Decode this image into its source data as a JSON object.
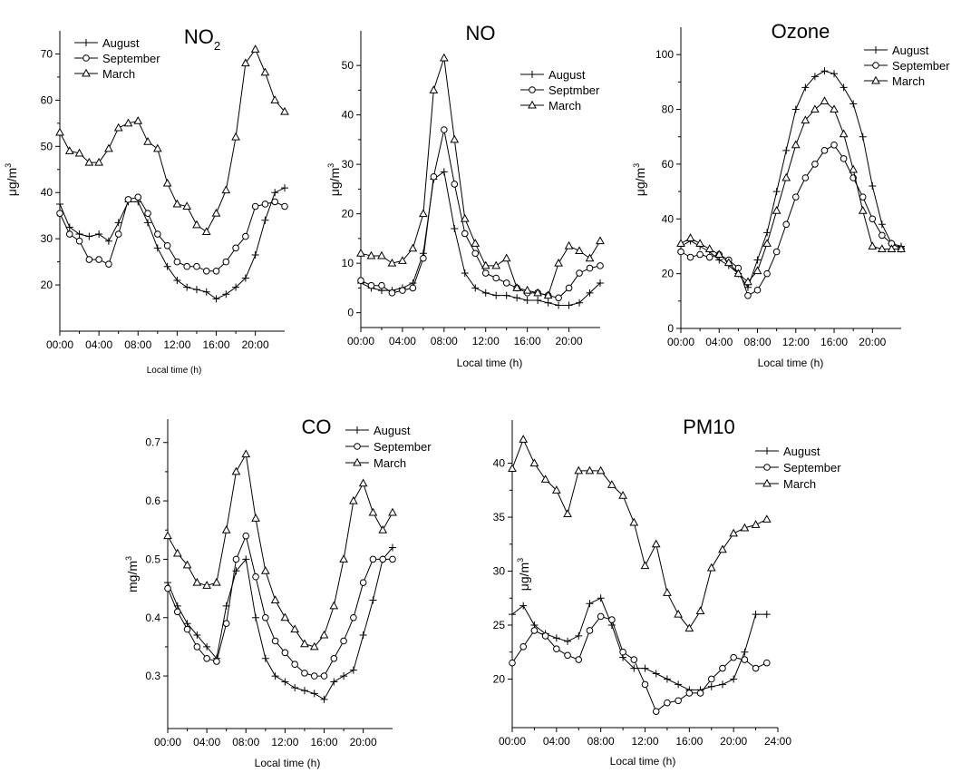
{
  "chart_data": [
    {
      "type": "line",
      "title": "NO",
      "title_sub": "2",
      "xlabel": "Local time (h)",
      "ylabel": "μg/m",
      "ylabel_sup": "3",
      "xlim": [
        0,
        23
      ],
      "ylim": [
        10,
        75
      ],
      "x_ticks": [
        0,
        4,
        8,
        12,
        16,
        20
      ],
      "x_tick_labels": [
        "00:00",
        "04:00",
        "08:00",
        "12:00",
        "16:00",
        "20:00"
      ],
      "y_ticks": [
        20,
        30,
        40,
        50,
        60,
        70
      ],
      "y_tick_labels": [
        "20",
        "30",
        "40",
        "50",
        "60",
        "70"
      ],
      "legend_position": "top-left",
      "series": [
        {
          "name": "August",
          "marker": "plus",
          "x": [
            0,
            1,
            2,
            3,
            4,
            5,
            6,
            7,
            8,
            9,
            10,
            11,
            12,
            13,
            14,
            15,
            16,
            17,
            18,
            19,
            20,
            21,
            22,
            23
          ],
          "values": [
            37.5,
            32.5,
            31,
            30.5,
            31,
            29.5,
            33.5,
            38,
            38,
            33.5,
            28,
            24,
            21,
            19.5,
            19,
            18.5,
            17,
            18,
            19.5,
            21.5,
            26.5,
            34,
            40,
            41
          ]
        },
        {
          "name": "September",
          "marker": "circle",
          "x": [
            0,
            1,
            2,
            3,
            4,
            5,
            6,
            7,
            8,
            9,
            10,
            11,
            12,
            13,
            14,
            15,
            16,
            17,
            18,
            19,
            20,
            21,
            22,
            23
          ],
          "values": [
            35.5,
            31,
            29.5,
            25.5,
            25.5,
            24.5,
            31,
            38.5,
            39,
            35.5,
            31,
            28.5,
            25,
            24,
            24,
            23,
            23,
            25,
            28,
            30.5,
            37,
            37.5,
            38,
            37
          ]
        },
        {
          "name": "March",
          "marker": "triangle",
          "x": [
            0,
            1,
            2,
            3,
            4,
            5,
            6,
            7,
            8,
            9,
            10,
            11,
            12,
            13,
            14,
            15,
            16,
            17,
            18,
            19,
            20,
            21,
            22,
            23
          ],
          "values": [
            53,
            49,
            48.5,
            46.5,
            46.5,
            49.5,
            54,
            55,
            55.5,
            51,
            49.5,
            42,
            37.5,
            37,
            33,
            31.5,
            35.5,
            40.5,
            52,
            68,
            71,
            66,
            60,
            57.5
          ]
        }
      ]
    },
    {
      "type": "line",
      "title": "NO",
      "xlabel": "Local time (h)",
      "ylabel": "μg/m",
      "ylabel_sup": "3",
      "xlim": [
        0,
        23
      ],
      "ylim": [
        -3,
        57
      ],
      "x_ticks": [
        0,
        4,
        8,
        12,
        16,
        20
      ],
      "x_tick_labels": [
        "00:00",
        "04:00",
        "08:00",
        "12:00",
        "16:00",
        "20:00"
      ],
      "y_ticks": [
        0,
        10,
        20,
        30,
        40,
        50
      ],
      "y_tick_labels": [
        "0",
        "10",
        "20",
        "30",
        "40",
        "50"
      ],
      "legend_position": "top-right",
      "series": [
        {
          "name": "August",
          "marker": "plus",
          "x": [
            0,
            1,
            2,
            3,
            4,
            5,
            6,
            7,
            8,
            9,
            10,
            11,
            12,
            13,
            14,
            15,
            16,
            17,
            18,
            19,
            20,
            21,
            22,
            23
          ],
          "values": [
            6,
            5,
            4.5,
            4.5,
            5,
            6,
            12,
            27,
            28.5,
            17,
            8,
            5,
            4,
            3.5,
            3.5,
            3,
            2.5,
            2.5,
            2,
            1.5,
            1.5,
            2,
            4,
            6
          ]
        },
        {
          "name": "Septmber",
          "marker": "circle",
          "x": [
            0,
            1,
            2,
            3,
            4,
            5,
            6,
            7,
            8,
            9,
            10,
            11,
            12,
            13,
            14,
            15,
            16,
            17,
            18,
            19,
            20,
            21,
            22,
            23
          ],
          "values": [
            6.5,
            5.5,
            5.5,
            4,
            4.5,
            5,
            11,
            27.5,
            37,
            26,
            16,
            12,
            8,
            7,
            6,
            5,
            4,
            4,
            3.5,
            3,
            5,
            8,
            9,
            9.5
          ]
        },
        {
          "name": "March",
          "marker": "triangle",
          "x": [
            0,
            1,
            2,
            3,
            4,
            5,
            6,
            7,
            8,
            9,
            10,
            11,
            12,
            13,
            14,
            15,
            16,
            17,
            18,
            19,
            20,
            21,
            22,
            23
          ],
          "values": [
            12,
            11.5,
            11.5,
            10,
            10.5,
            13,
            20,
            45,
            51.5,
            35,
            19,
            14,
            9.5,
            9.5,
            11,
            5,
            4.5,
            4,
            3.5,
            10,
            13.5,
            12.5,
            11,
            14.5
          ]
        }
      ]
    },
    {
      "type": "line",
      "title": "Ozone",
      "xlabel": "Local time (h)",
      "ylabel": "μg/m",
      "ylabel_sup": "3",
      "xlim": [
        0,
        23
      ],
      "ylim": [
        0,
        110
      ],
      "x_ticks": [
        0,
        4,
        8,
        12,
        16,
        20
      ],
      "x_tick_labels": [
        "00:00",
        "04:00",
        "08:00",
        "12:00",
        "16:00",
        "20:00"
      ],
      "y_ticks": [
        0,
        20,
        40,
        60,
        80,
        100
      ],
      "y_tick_labels": [
        "0",
        "20",
        "40",
        "60",
        "80",
        "100"
      ],
      "legend_position": "top-right",
      "series": [
        {
          "name": "August",
          "marker": "plus",
          "x": [
            0,
            1,
            2,
            3,
            4,
            5,
            6,
            7,
            8,
            9,
            10,
            11,
            12,
            13,
            14,
            15,
            16,
            17,
            18,
            19,
            20,
            21,
            22,
            23
          ],
          "values": [
            30,
            32,
            30,
            28,
            25,
            23,
            20,
            15,
            25,
            35,
            50,
            65,
            80,
            88,
            92,
            94,
            93,
            88,
            82,
            70,
            52,
            38,
            31,
            30
          ]
        },
        {
          "name": "September",
          "marker": "circle",
          "x": [
            0,
            1,
            2,
            3,
            4,
            5,
            6,
            7,
            8,
            9,
            10,
            11,
            12,
            13,
            14,
            15,
            16,
            17,
            18,
            19,
            20,
            21,
            22,
            23
          ],
          "values": [
            28,
            26,
            27,
            26,
            27,
            25,
            22,
            12,
            14,
            20,
            28,
            38,
            48,
            55,
            60,
            65,
            67,
            62,
            55,
            48,
            40,
            34,
            31,
            29
          ]
        },
        {
          "name": "March",
          "marker": "triangle",
          "x": [
            0,
            1,
            2,
            3,
            4,
            5,
            6,
            7,
            8,
            9,
            10,
            11,
            12,
            13,
            14,
            15,
            16,
            17,
            18,
            19,
            20,
            21,
            22,
            23
          ],
          "values": [
            31,
            33,
            31,
            29,
            27,
            24,
            20,
            17,
            21,
            31,
            43,
            55,
            67,
            76,
            80,
            83,
            80,
            71,
            58,
            43,
            30,
            29,
            29,
            29
          ]
        }
      ]
    },
    {
      "type": "line",
      "title": "CO",
      "xlabel": "Local time (h)",
      "ylabel": "mg/m",
      "ylabel_sup": "3",
      "xlim": [
        0,
        23
      ],
      "ylim": [
        0.21,
        0.74
      ],
      "x_ticks": [
        0,
        4,
        8,
        12,
        16,
        20
      ],
      "x_tick_labels": [
        "00:00",
        "04:00",
        "08:00",
        "12:00",
        "16:00",
        "20:00"
      ],
      "y_ticks": [
        0.3,
        0.4,
        0.5,
        0.6,
        0.7
      ],
      "y_tick_labels": [
        "0.3",
        "0.4",
        "0.5",
        "0.6",
        "0.7"
      ],
      "legend_position": "top-right",
      "series": [
        {
          "name": "August",
          "marker": "plus",
          "x": [
            0,
            1,
            2,
            3,
            4,
            5,
            6,
            7,
            8,
            9,
            10,
            11,
            12,
            13,
            14,
            15,
            16,
            17,
            18,
            19,
            20,
            21,
            22,
            23
          ],
          "values": [
            0.46,
            0.42,
            0.39,
            0.37,
            0.35,
            0.33,
            0.42,
            0.48,
            0.5,
            0.4,
            0.33,
            0.3,
            0.29,
            0.28,
            0.275,
            0.27,
            0.26,
            0.29,
            0.3,
            0.31,
            0.37,
            0.43,
            0.5,
            0.52
          ]
        },
        {
          "name": "September",
          "marker": "circle",
          "x": [
            0,
            1,
            2,
            3,
            4,
            5,
            6,
            7,
            8,
            9,
            10,
            11,
            12,
            13,
            14,
            15,
            16,
            17,
            18,
            19,
            20,
            21,
            22,
            23
          ],
          "values": [
            0.45,
            0.41,
            0.38,
            0.35,
            0.33,
            0.325,
            0.39,
            0.5,
            0.54,
            0.47,
            0.4,
            0.36,
            0.34,
            0.32,
            0.305,
            0.3,
            0.3,
            0.33,
            0.36,
            0.4,
            0.46,
            0.5,
            0.5,
            0.5
          ]
        },
        {
          "name": "March",
          "marker": "triangle",
          "x": [
            0,
            1,
            2,
            3,
            4,
            5,
            6,
            7,
            8,
            9,
            10,
            11,
            12,
            13,
            14,
            15,
            16,
            17,
            18,
            19,
            20,
            21,
            22,
            23
          ],
          "values": [
            0.54,
            0.51,
            0.49,
            0.46,
            0.455,
            0.46,
            0.55,
            0.65,
            0.68,
            0.57,
            0.48,
            0.43,
            0.4,
            0.38,
            0.355,
            0.35,
            0.37,
            0.42,
            0.5,
            0.6,
            0.63,
            0.58,
            0.55,
            0.58
          ]
        }
      ]
    },
    {
      "type": "line",
      "title": "PM10",
      "xlabel": "Local time (h)",
      "ylabel": "μg/m",
      "ylabel_sup": "3",
      "xlim": [
        0,
        24
      ],
      "ylim": [
        15.5,
        44
      ],
      "x_ticks": [
        0,
        4,
        8,
        12,
        16,
        20,
        24
      ],
      "x_tick_labels": [
        "00:00",
        "04:00",
        "08:00",
        "12:00",
        "16:00",
        "20:00",
        "24:00"
      ],
      "y_ticks": [
        20,
        25,
        30,
        35,
        40
      ],
      "y_tick_labels": [
        "20",
        "25",
        "30",
        "35",
        "40"
      ],
      "legend_position": "top-right",
      "series": [
        {
          "name": "August",
          "marker": "plus",
          "x": [
            0,
            1,
            2,
            3,
            4,
            5,
            6,
            7,
            8,
            9,
            10,
            11,
            12,
            13,
            14,
            15,
            16,
            17,
            18,
            19,
            20,
            21,
            22,
            23
          ],
          "values": [
            26,
            26.8,
            25,
            24.2,
            23.8,
            23.5,
            24,
            27,
            27.5,
            25,
            22,
            21,
            21,
            20.5,
            20,
            19.5,
            19,
            19,
            19.3,
            19.5,
            20,
            22.5,
            26,
            26
          ]
        },
        {
          "name": "September",
          "marker": "circle",
          "x": [
            0,
            1,
            2,
            3,
            4,
            5,
            6,
            7,
            8,
            9,
            10,
            11,
            12,
            13,
            14,
            15,
            16,
            17,
            18,
            19,
            20,
            21,
            22,
            23
          ],
          "values": [
            21.5,
            23,
            24.5,
            24,
            22.8,
            22.2,
            21.8,
            24.5,
            25.8,
            25.5,
            22.5,
            21.8,
            19.5,
            17,
            17.8,
            18,
            18.7,
            18.7,
            20,
            21,
            22,
            21.8,
            21,
            21.5
          ]
        },
        {
          "name": "March",
          "marker": "triangle",
          "x": [
            0,
            1,
            2,
            3,
            4,
            5,
            6,
            7,
            8,
            9,
            10,
            11,
            12,
            13,
            14,
            15,
            16,
            17,
            18,
            19,
            20,
            21,
            22,
            23
          ],
          "values": [
            39.5,
            42.2,
            40,
            38.5,
            37.5,
            35.3,
            39.3,
            39.3,
            39.3,
            38,
            37,
            34.5,
            30.5,
            32.5,
            28,
            26,
            24.7,
            26.3,
            30.3,
            32,
            33.5,
            34,
            34.3,
            34.8
          ]
        }
      ]
    }
  ]
}
